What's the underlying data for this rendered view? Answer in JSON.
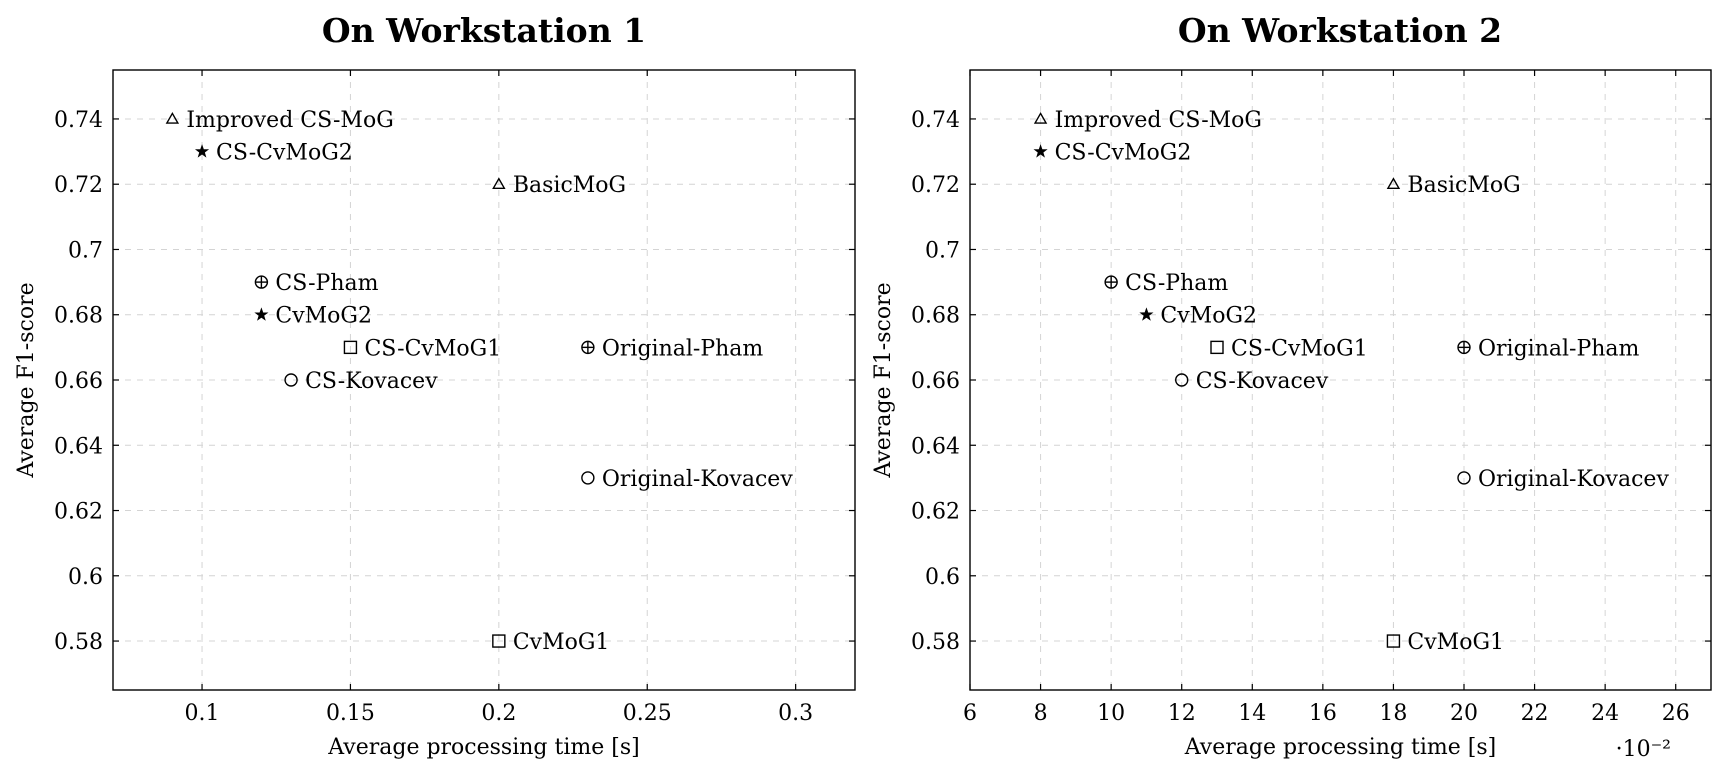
{
  "chart_data": [
    {
      "type": "scatter",
      "title": "On Workstation 1",
      "xlabel": "Average processing time [s]",
      "ylabel": "Average F1-score",
      "xlim": [
        0.07,
        0.32
      ],
      "ylim": [
        0.565,
        0.755
      ],
      "xticks": [
        0.1,
        0.15,
        0.2,
        0.25,
        0.3
      ],
      "xtick_labels": [
        "0.1",
        "0.15",
        "0.2",
        "0.25",
        "0.3"
      ],
      "yticks": [
        0.58,
        0.6,
        0.62,
        0.64,
        0.66,
        0.68,
        0.7,
        0.72,
        0.74
      ],
      "ytick_labels": [
        "0.58",
        "0.6",
        "0.62",
        "0.64",
        "0.66",
        "0.68",
        "0.7",
        "0.72",
        "0.74"
      ],
      "x_multiplier": "",
      "grid": true,
      "points": [
        {
          "label": "Improved CS-MoG",
          "x": 0.09,
          "y": 0.74,
          "marker": "triangle"
        },
        {
          "label": "CS-CvMoG2",
          "x": 0.1,
          "y": 0.73,
          "marker": "star"
        },
        {
          "label": "BasicMoG",
          "x": 0.2,
          "y": 0.72,
          "marker": "triangle"
        },
        {
          "label": "CS-Pham",
          "x": 0.12,
          "y": 0.69,
          "marker": "oplus"
        },
        {
          "label": "CvMoG2",
          "x": 0.12,
          "y": 0.68,
          "marker": "star"
        },
        {
          "label": "CS-CvMoG1",
          "x": 0.15,
          "y": 0.67,
          "marker": "square"
        },
        {
          "label": "Original-Pham",
          "x": 0.23,
          "y": 0.67,
          "marker": "oplus"
        },
        {
          "label": "CS-Kovacev",
          "x": 0.13,
          "y": 0.66,
          "marker": "circle"
        },
        {
          "label": "Original-Kovacev",
          "x": 0.23,
          "y": 0.63,
          "marker": "circle"
        },
        {
          "label": "CvMoG1",
          "x": 0.2,
          "y": 0.58,
          "marker": "square"
        }
      ]
    },
    {
      "type": "scatter",
      "title": "On Workstation 2",
      "xlabel": "Average processing time [s]",
      "ylabel": "Average F1-score",
      "xlim": [
        0.06,
        0.27
      ],
      "ylim": [
        0.565,
        0.755
      ],
      "xticks": [
        0.06,
        0.08,
        0.1,
        0.12,
        0.14,
        0.16,
        0.18,
        0.2,
        0.22,
        0.24,
        0.26
      ],
      "xtick_labels": [
        "6",
        "8",
        "10",
        "12",
        "14",
        "16",
        "18",
        "20",
        "22",
        "24",
        "26"
      ],
      "yticks": [
        0.58,
        0.6,
        0.62,
        0.64,
        0.66,
        0.68,
        0.7,
        0.72,
        0.74
      ],
      "ytick_labels": [
        "0.58",
        "0.6",
        "0.62",
        "0.64",
        "0.66",
        "0.68",
        "0.7",
        "0.72",
        "0.74"
      ],
      "x_multiplier": "·10⁻²",
      "grid": true,
      "points": [
        {
          "label": "Improved CS-MoG",
          "x": 0.08,
          "y": 0.74,
          "marker": "triangle"
        },
        {
          "label": "CS-CvMoG2",
          "x": 0.08,
          "y": 0.73,
          "marker": "star"
        },
        {
          "label": "BasicMoG",
          "x": 0.18,
          "y": 0.72,
          "marker": "triangle"
        },
        {
          "label": "CS-Pham",
          "x": 0.1,
          "y": 0.69,
          "marker": "oplus"
        },
        {
          "label": "CvMoG2",
          "x": 0.11,
          "y": 0.68,
          "marker": "star"
        },
        {
          "label": "CS-CvMoG1",
          "x": 0.13,
          "y": 0.67,
          "marker": "square"
        },
        {
          "label": "Original-Pham",
          "x": 0.2,
          "y": 0.67,
          "marker": "oplus"
        },
        {
          "label": "CS-Kovacev",
          "x": 0.12,
          "y": 0.66,
          "marker": "circle"
        },
        {
          "label": "Original-Kovacev",
          "x": 0.2,
          "y": 0.63,
          "marker": "circle"
        },
        {
          "label": "CvMoG1",
          "x": 0.18,
          "y": 0.58,
          "marker": "square"
        }
      ]
    }
  ]
}
